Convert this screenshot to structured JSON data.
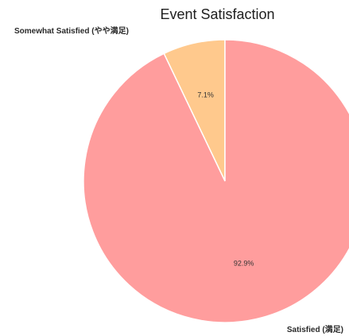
{
  "chart_data": {
    "type": "pie",
    "title": "Event Satisfaction",
    "slices": [
      {
        "label": "Somewhat Satisfied (やや満足)",
        "value": 7.1,
        "pct_label": "7.1%",
        "color": "#ffc98d"
      },
      {
        "label": "Satisfied (満足)",
        "value": 92.9,
        "pct_label": "92.9%",
        "color": "#ff9d9d"
      }
    ],
    "start_angle_deg": 90,
    "direction": "counterclockwise",
    "slice_border_color": "#ffffff"
  }
}
